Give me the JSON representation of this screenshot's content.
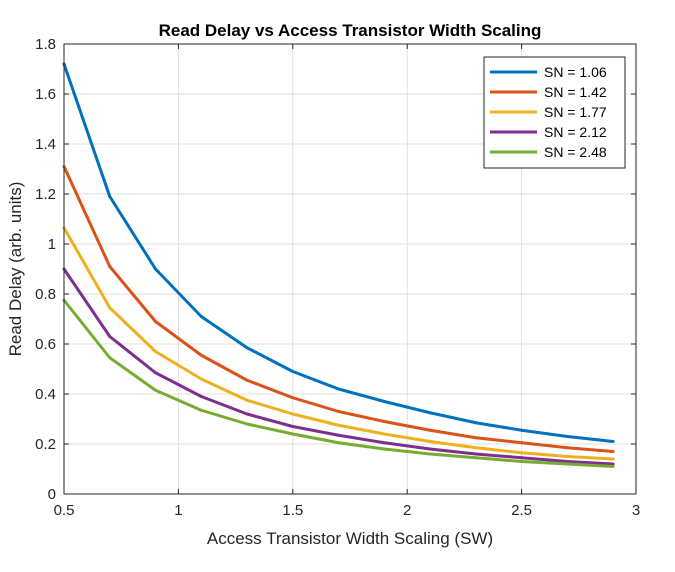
{
  "chart_data": {
    "type": "line",
    "title": "Read Delay vs Access Transistor Width Scaling",
    "xlabel": "Access Transistor Width Scaling (SW)",
    "ylabel": "Read Delay (arb. units)",
    "xlim": [
      0.5,
      3
    ],
    "ylim": [
      0,
      1.8
    ],
    "xticks": [
      0.5,
      1,
      1.5,
      2,
      2.5,
      3
    ],
    "xtick_labels": [
      "0.5",
      "1",
      "1.5",
      "2",
      "2.5",
      "3"
    ],
    "yticks": [
      0,
      0.2,
      0.4,
      0.6,
      0.8,
      1,
      1.2,
      1.4,
      1.6,
      1.8
    ],
    "ytick_labels": [
      "0",
      "0.2",
      "0.4",
      "0.6",
      "0.8",
      "1",
      "1.2",
      "1.4",
      "1.6",
      "1.8"
    ],
    "grid": true,
    "legend_position": "top-right",
    "x": [
      0.5,
      0.7,
      0.9,
      1.1,
      1.3,
      1.5,
      1.7,
      1.9,
      2.1,
      2.3,
      2.5,
      2.7,
      2.9
    ],
    "series": [
      {
        "name": "SN = 1.06",
        "color": "#0072BD",
        "values": [
          1.72,
          1.19,
          0.9,
          0.71,
          0.585,
          0.49,
          0.42,
          0.37,
          0.325,
          0.285,
          0.255,
          0.23,
          0.21
        ]
      },
      {
        "name": "SN = 1.42",
        "color": "#D95319",
        "values": [
          1.31,
          0.91,
          0.69,
          0.555,
          0.455,
          0.385,
          0.33,
          0.29,
          0.255,
          0.225,
          0.205,
          0.185,
          0.17
        ]
      },
      {
        "name": "SN = 1.77",
        "color": "#EDB120",
        "values": [
          1.065,
          0.745,
          0.57,
          0.46,
          0.375,
          0.32,
          0.275,
          0.24,
          0.21,
          0.185,
          0.165,
          0.15,
          0.14
        ]
      },
      {
        "name": "SN = 2.12",
        "color": "#7E2F8E",
        "values": [
          0.9,
          0.63,
          0.485,
          0.39,
          0.32,
          0.27,
          0.235,
          0.205,
          0.18,
          0.16,
          0.145,
          0.13,
          0.12
        ]
      },
      {
        "name": "SN = 2.48",
        "color": "#77AC30",
        "values": [
          0.775,
          0.545,
          0.415,
          0.335,
          0.28,
          0.24,
          0.205,
          0.18,
          0.16,
          0.145,
          0.13,
          0.12,
          0.11
        ]
      }
    ]
  }
}
